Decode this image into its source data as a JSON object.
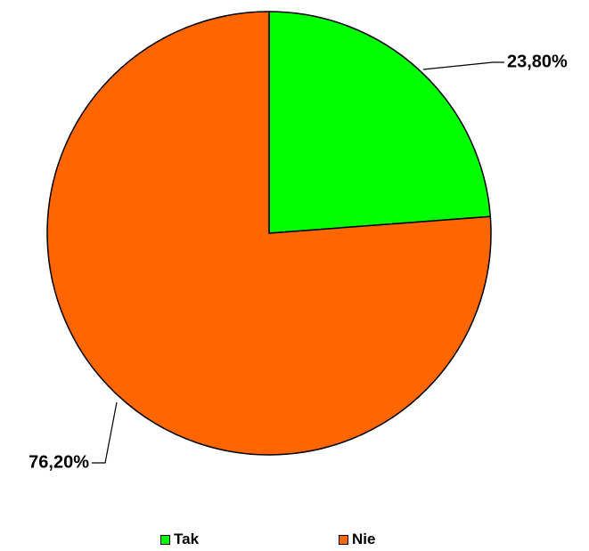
{
  "chart_data": {
    "type": "pie",
    "slices": [
      {
        "name": "Tak",
        "value": 23.8,
        "label": "23,80%",
        "color": "#00ff00"
      },
      {
        "name": "Nie",
        "value": 76.2,
        "label": "76,20%",
        "color": "#ff6600"
      }
    ],
    "legend_position": "bottom",
    "start_angle": "12 o'clock, clockwise"
  }
}
